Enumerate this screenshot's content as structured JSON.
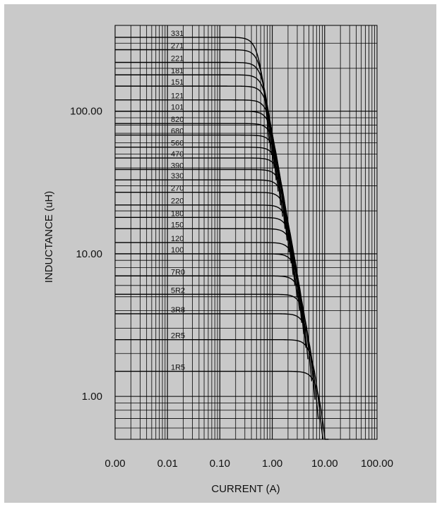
{
  "chart_data": {
    "type": "line",
    "xlabel": "CURRENT (A)",
    "ylabel": "INDUCTANCE (uH)",
    "x_scale": "log",
    "y_scale": "log",
    "xlim": [
      0.001,
      100
    ],
    "ylim": [
      0.5,
      400
    ],
    "x_tick_labels": [
      "0.00",
      "0.01",
      "0.10",
      "1.00",
      "10.00",
      "100.00"
    ],
    "x_tick_values": [
      0.001,
      0.01,
      0.1,
      1,
      10,
      100
    ],
    "y_tick_labels": [
      "1.00",
      "10.00",
      "100.00"
    ],
    "y_tick_values": [
      1,
      10,
      100
    ],
    "grid": true,
    "line_color": "#000000",
    "series": [
      {
        "name": "331",
        "L0": 330,
        "Isat": 0.65
      },
      {
        "name": "271",
        "L0": 270,
        "Isat": 0.72
      },
      {
        "name": "221",
        "L0": 220,
        "Isat": 0.8
      },
      {
        "name": "181",
        "L0": 180,
        "Isat": 0.88
      },
      {
        "name": "151",
        "L0": 150,
        "Isat": 0.96
      },
      {
        "name": "121",
        "L0": 120,
        "Isat": 1.07
      },
      {
        "name": "101",
        "L0": 100,
        "Isat": 1.17
      },
      {
        "name": "820",
        "L0": 82,
        "Isat": 1.3
      },
      {
        "name": "680",
        "L0": 68,
        "Isat": 1.42
      },
      {
        "name": "560",
        "L0": 56,
        "Isat": 1.55
      },
      {
        "name": "470",
        "L0": 47,
        "Isat": 1.7
      },
      {
        "name": "390",
        "L0": 39,
        "Isat": 1.85
      },
      {
        "name": "330",
        "L0": 33,
        "Isat": 2.0
      },
      {
        "name": "270",
        "L0": 27,
        "Isat": 2.2
      },
      {
        "name": "220",
        "L0": 22,
        "Isat": 2.45
      },
      {
        "name": "180",
        "L0": 18,
        "Isat": 2.7
      },
      {
        "name": "150",
        "L0": 15,
        "Isat": 2.95
      },
      {
        "name": "120",
        "L0": 12,
        "Isat": 3.25
      },
      {
        "name": "100",
        "L0": 10,
        "Isat": 3.55
      },
      {
        "name": "7R0",
        "L0": 7,
        "Isat": 4.2
      },
      {
        "name": "5R2",
        "L0": 5.2,
        "Isat": 4.85
      },
      {
        "name": "3R8",
        "L0": 3.8,
        "Isat": 5.6
      },
      {
        "name": "2R5",
        "L0": 2.5,
        "Isat": 6.9
      },
      {
        "name": "1R5",
        "L0": 1.5,
        "Isat": 8.8
      }
    ]
  }
}
